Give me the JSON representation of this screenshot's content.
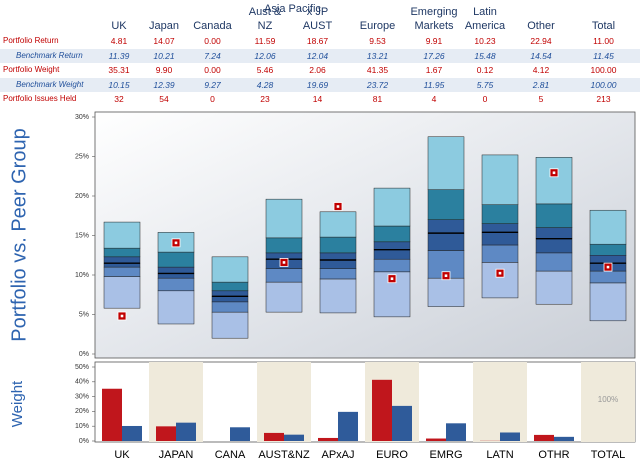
{
  "table": {
    "group_header": "Asia Pacific",
    "columns": [
      "UK",
      "Japan",
      "Canada",
      "Aust & NZ",
      "x JP AUST",
      "Europe",
      "Emerging Markets",
      "Latin America",
      "Other",
      "Total"
    ],
    "rows": [
      {
        "label": "Portfolio Return",
        "color": "#c00000",
        "cells": [
          "4.81",
          "14.07",
          "0.00",
          "11.59",
          "18.67",
          "9.53",
          "9.91",
          "10.23",
          "22.94",
          "11.00"
        ]
      },
      {
        "label": "Benchmark Return",
        "color": "#1f4e9a",
        "cells": [
          "11.39",
          "10.21",
          "7.24",
          "12.06",
          "12.04",
          "13.21",
          "17.26",
          "15.48",
          "14.54",
          "11.45"
        ]
      },
      {
        "label": "Portfolio Weight",
        "color": "#c00000",
        "cells": [
          "35.31",
          "9.90",
          "0.00",
          "5.46",
          "2.06",
          "41.35",
          "1.67",
          "0.12",
          "4.12",
          "100.00"
        ]
      },
      {
        "label": "Benchmark Weight",
        "color": "#1f4e9a",
        "cells": [
          "10.15",
          "12.39",
          "9.27",
          "4.28",
          "19.69",
          "23.72",
          "11.95",
          "5.75",
          "2.81",
          "100.00"
        ]
      },
      {
        "label": "Portfolio Issues Held",
        "color": "#c00000",
        "cells": [
          "32",
          "54",
          "0",
          "23",
          "14",
          "81",
          "4",
          "0",
          "5",
          "213"
        ]
      }
    ]
  },
  "chart_data": [
    {
      "type": "box",
      "title": "Portfolio vs. Peer Group",
      "quantiles": [
        [
          5.8,
          9.8,
          11.0,
          11.5,
          12.3,
          13.4,
          16.7
        ],
        [
          3.8,
          8.0,
          9.6,
          10.2,
          11.0,
          12.9,
          15.4
        ],
        [
          2.0,
          5.3,
          6.6,
          7.3,
          8.0,
          9.1,
          12.3
        ],
        [
          5.3,
          9.1,
          10.8,
          12.0,
          12.8,
          14.7,
          19.6
        ],
        [
          5.2,
          9.5,
          10.8,
          11.9,
          12.8,
          14.8,
          18.0
        ],
        [
          4.7,
          10.4,
          12.0,
          13.2,
          14.2,
          16.2,
          21.0
        ],
        [
          6.0,
          9.6,
          13.1,
          15.3,
          17.0,
          20.8,
          27.5
        ],
        [
          7.1,
          11.6,
          13.8,
          15.4,
          16.5,
          18.9,
          25.2
        ],
        [
          6.3,
          10.5,
          12.8,
          14.6,
          16.0,
          19.0,
          24.9
        ],
        [
          4.2,
          9.0,
          10.5,
          11.5,
          12.5,
          13.9,
          18.2
        ]
      ],
      "colors": [
        "#a9c0e6",
        "#5e89c4",
        "#2f5a98",
        "#2f5a98",
        "#2b809f",
        "#8ccbe0"
      ],
      "series": [
        {
          "color": "#c00000",
          "values": [
            4.81,
            14.07,
            null,
            11.59,
            18.67,
            9.53,
            9.91,
            10.23,
            22.94,
            11.0
          ]
        }
      ],
      "ylim": [
        0,
        30
      ],
      "yticks": [
        {
          "value": 0,
          "label": "0%"
        },
        {
          "value": 5,
          "label": "5%"
        },
        {
          "value": 10,
          "label": "10%"
        },
        {
          "value": 15,
          "label": "15%"
        },
        {
          "value": 20,
          "label": "20%"
        },
        {
          "value": 25,
          "label": "25%"
        },
        {
          "value": 30,
          "label": "30%"
        }
      ]
    },
    {
      "type": "bar",
      "title": "Weight",
      "categories": [
        "UK",
        "JAPAN",
        "CANA",
        "AUST&NZ",
        "APxAJ",
        "EURO",
        "EMRG",
        "LATN",
        "OTHR",
        "TOTAL"
      ],
      "series": [
        {
          "color": "#c0161c",
          "values": [
            35.31,
            9.9,
            0.0,
            5.46,
            2.06,
            41.35,
            1.67,
            0.12,
            4.12,
            null
          ]
        },
        {
          "color": "#2f5b9a",
          "values": [
            10.15,
            12.39,
            9.27,
            4.28,
            19.69,
            23.72,
            11.95,
            5.75,
            2.81,
            null
          ]
        }
      ],
      "ylim": [
        0,
        50
      ],
      "yticks": [
        {
          "value": 0,
          "label": "0%"
        },
        {
          "value": 10,
          "label": "10%"
        },
        {
          "value": 20,
          "label": "20%"
        },
        {
          "value": 30,
          "label": "30%"
        },
        {
          "value": 40,
          "label": "40%"
        },
        {
          "value": 50,
          "label": "50%"
        }
      ],
      "annotation": "100%"
    }
  ]
}
